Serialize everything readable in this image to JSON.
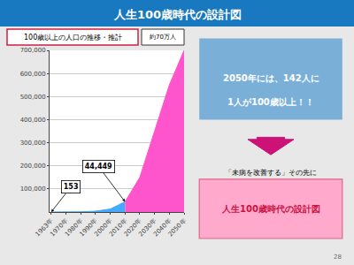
{
  "chart_data": {
    "type": "area",
    "title": "人生100歳時代の設計図",
    "subtitle": "100歳以上の人口の推移・推計",
    "categories": [
      "1963年",
      "1970年",
      "1980年",
      "1990年",
      "2000年",
      "2010年",
      "2020年",
      "2030年",
      "2040年",
      "2050年"
    ],
    "series": [
      {
        "color": "#44aaff",
        "values": [
          153,
          310,
          1000,
          3500,
          13000,
          44449,
          null,
          null,
          null,
          null
        ]
      },
      {
        "color": "#ff55cc",
        "values": [
          null,
          null,
          null,
          null,
          null,
          44449,
          150000,
          350000,
          550000,
          700000
        ]
      }
    ],
    "ylim": [
      0,
      700000
    ],
    "yticks": [
      {
        "value": 100000,
        "label": "100,000"
      },
      {
        "value": 200000,
        "label": "200,000"
      },
      {
        "value": 300000,
        "label": "300,000"
      },
      {
        "value": 400000,
        "label": "400,000"
      },
      {
        "value": 500000,
        "label": "500,000"
      },
      {
        "value": 600000,
        "label": "600,000"
      },
      {
        "value": 700000,
        "label": "700,000"
      }
    ],
    "grid": true,
    "annotations": [
      {
        "text": "153",
        "x": "1963年",
        "y": 153
      },
      {
        "text": "44,449",
        "x": "2010年",
        "y": 44449
      },
      {
        "text": "約70万人"
      },
      {
        "text": "2050年には、142人に"
      },
      {
        "text": "1人が100歳以上！！"
      },
      {
        "text": "「未病を改善する」その先に"
      },
      {
        "text": "人生100歳時代の設計図"
      },
      {
        "text": "28"
      }
    ]
  }
}
